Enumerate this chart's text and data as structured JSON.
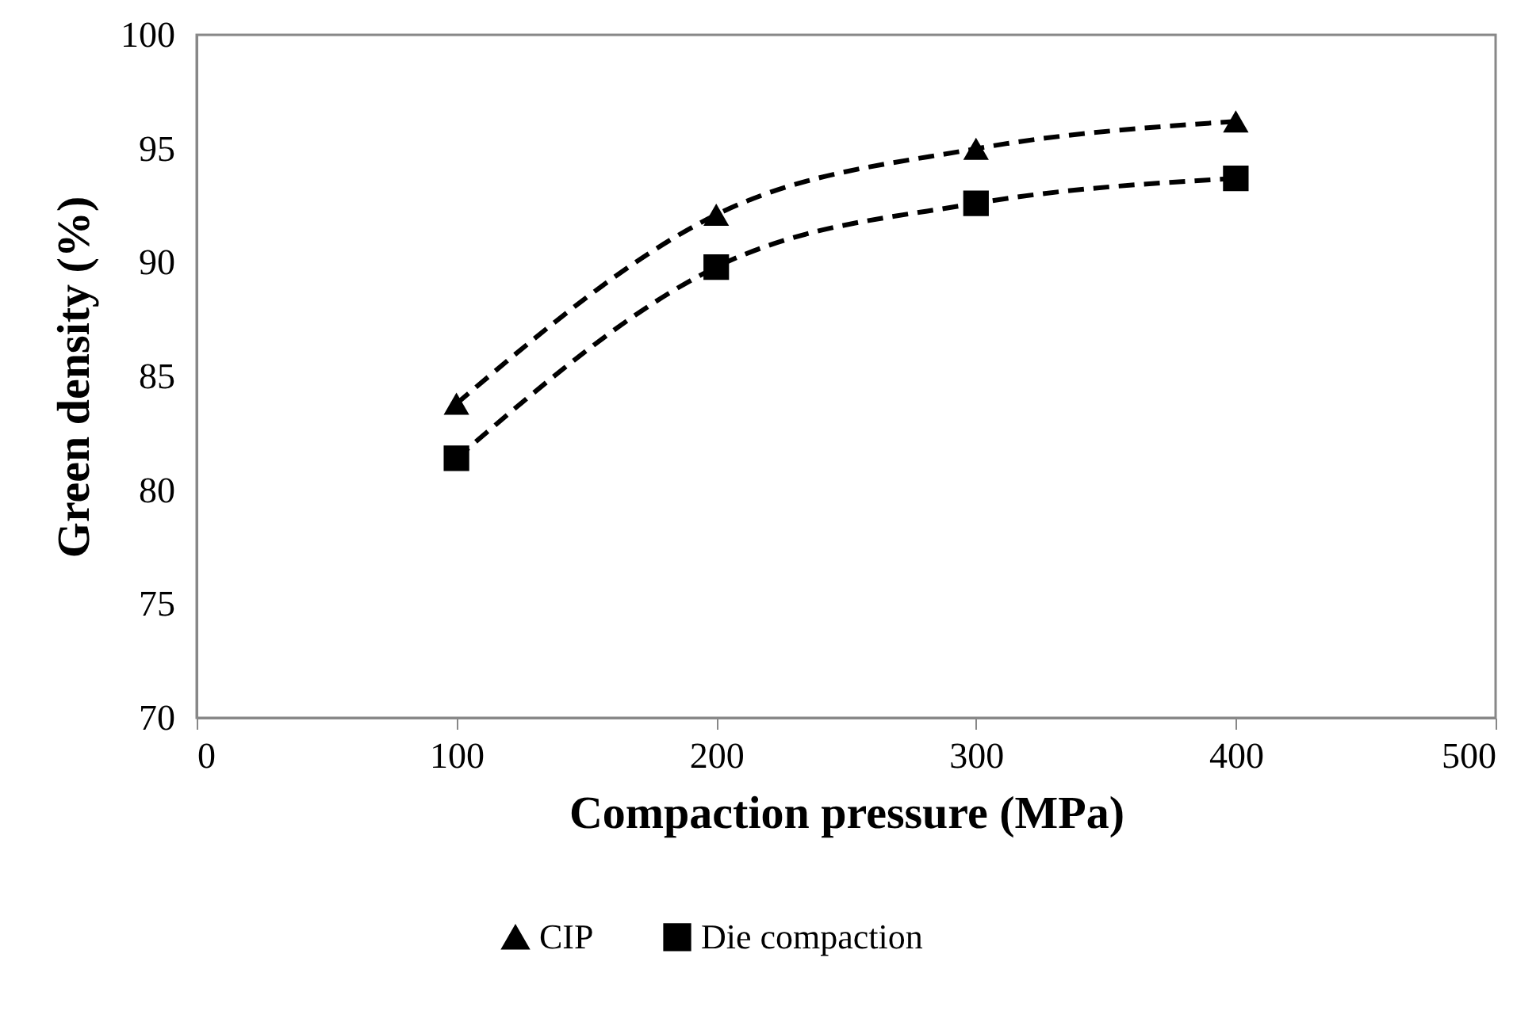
{
  "chart_data": {
    "type": "line",
    "xlabel": "Compaction pressure (MPa)",
    "ylabel": "Green density (%)",
    "x": [
      100,
      200,
      300,
      400
    ],
    "series": [
      {
        "name": "CIP",
        "color": "#000000",
        "marker": "triangle",
        "values": [
          83.8,
          92.1,
          95.0,
          96.2
        ]
      },
      {
        "name": "Die compaction",
        "color": "#000000",
        "marker": "square",
        "values": [
          81.4,
          89.8,
          92.6,
          93.7
        ]
      }
    ],
    "xlim": [
      0,
      500
    ],
    "xticks": [
      0,
      100,
      200,
      300,
      400,
      500
    ],
    "ylim": [
      70,
      100
    ],
    "yticks": [
      70,
      75,
      80,
      85,
      90,
      95,
      100
    ],
    "grid": false,
    "legend": "bottom",
    "line_style": "dashed"
  }
}
